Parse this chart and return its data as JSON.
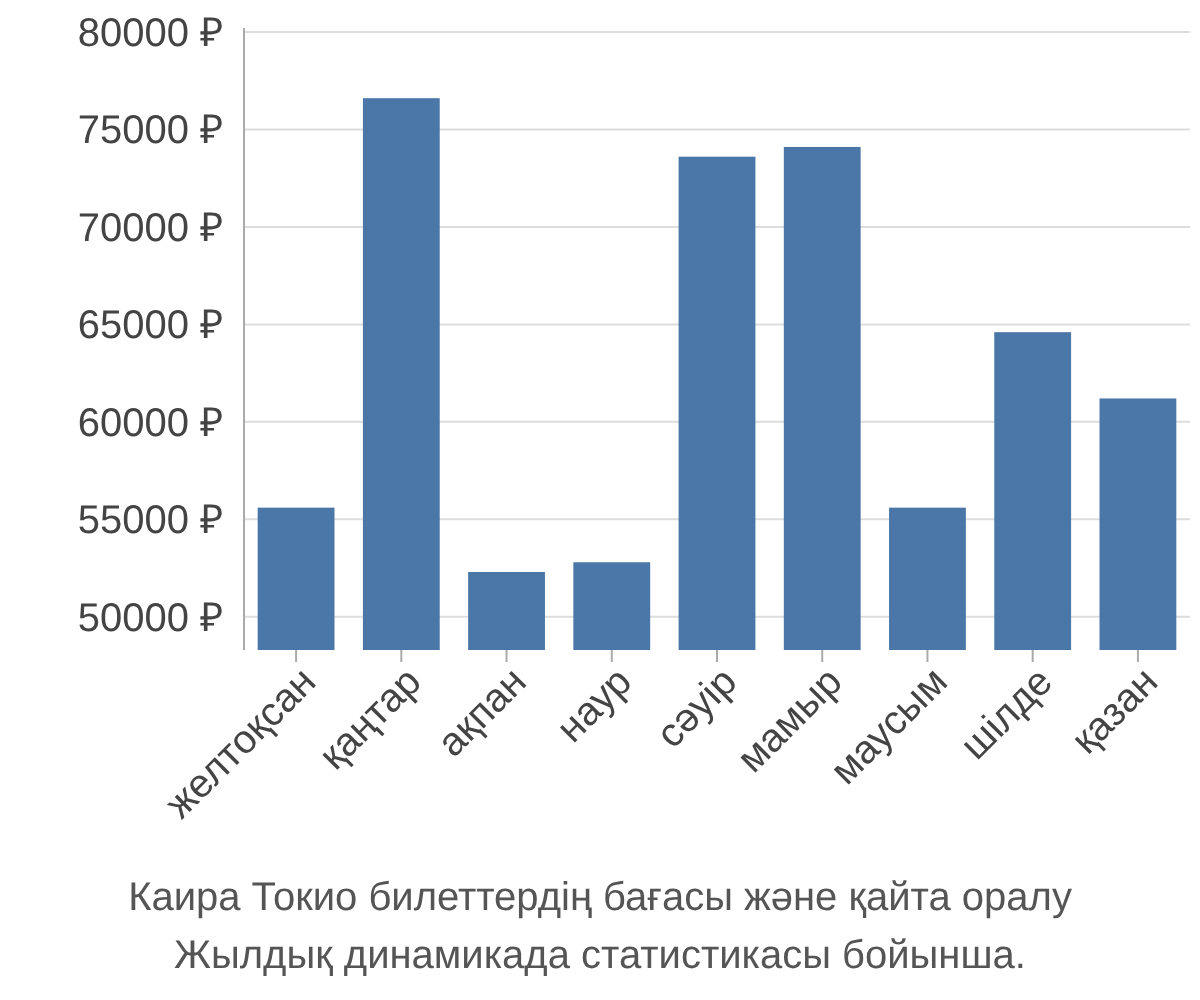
{
  "chart_data": {
    "type": "bar",
    "categories": [
      "желтоқсан",
      "қаңтар",
      "ақпан",
      "наур",
      "сәуір",
      "мамыр",
      "маусым",
      "шілде",
      "қазан"
    ],
    "values": [
      55600,
      76600,
      52300,
      52800,
      73600,
      74100,
      55600,
      64600,
      61200
    ],
    "color": "#4a76a8",
    "ylim": [
      48300,
      80200
    ],
    "yticks": [
      {
        "value": 50000,
        "label": "50000 ₽"
      },
      {
        "value": 55000,
        "label": "55000 ₽"
      },
      {
        "value": 60000,
        "label": "60000 ₽"
      },
      {
        "value": 65000,
        "label": "65000 ₽"
      },
      {
        "value": 70000,
        "label": "70000 ₽"
      },
      {
        "value": 75000,
        "label": "75000 ₽"
      },
      {
        "value": 80000,
        "label": "80000 ₽"
      }
    ],
    "grid": "y",
    "annotations": [
      "Каира Токио билеттердің бағасы және қайта оралу",
      "Жылдық динамикада статистикасы бойынша."
    ]
  }
}
